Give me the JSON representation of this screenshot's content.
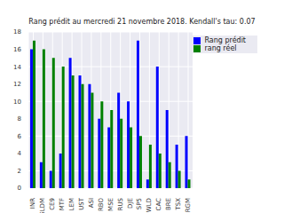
{
  "chart_data": {
    "type": "bar",
    "title": "Rang prédit au mercredi 21 novembre 2018. Kendall's tau: 0.07",
    "categories": [
      "INR",
      "GLDM",
      "CE9",
      "MTF",
      "LEM",
      "UST",
      "ASI",
      "RBO",
      "MSE",
      "RUS",
      "DJE",
      "SP5",
      "WLD",
      "CAC",
      "BRE",
      "TSX",
      "NRGM"
    ],
    "series": [
      {
        "name": "Rang prédit",
        "color": "#0000ff",
        "values": [
          16,
          3,
          2,
          4,
          15,
          13,
          12,
          8,
          7,
          11,
          10,
          17,
          1,
          14,
          9,
          5,
          6
        ]
      },
      {
        "name": "rang réel",
        "color": "#008000",
        "values": [
          17,
          16,
          15,
          14,
          13,
          12,
          11,
          10,
          9,
          8,
          7,
          6,
          5,
          4,
          3,
          2,
          1
        ]
      }
    ],
    "ylim": [
      0,
      18
    ],
    "yticks": [
      0,
      2,
      4,
      6,
      8,
      10,
      12,
      14,
      16,
      18
    ],
    "grid": true,
    "legend": "upper right"
  }
}
